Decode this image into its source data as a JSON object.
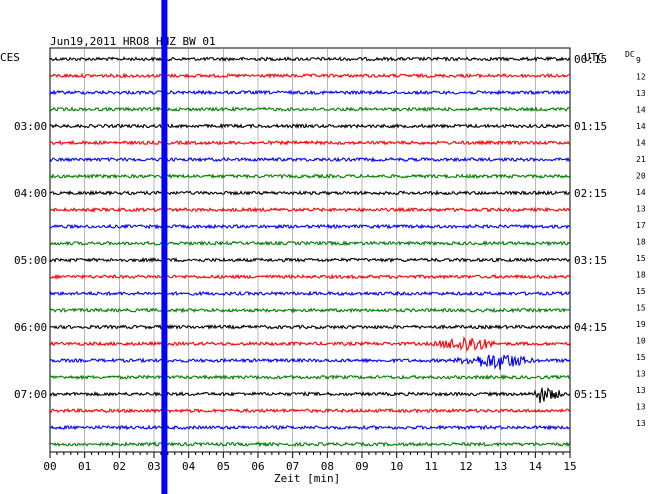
{
  "header": {
    "title": "Jun19,2011   HRO8 HHZ BW 01",
    "left_tz": "CES",
    "right_tz": "UTC",
    "dc_label": "DC"
  },
  "chart_data": {
    "type": "line",
    "xlabel": "Zeit [min]",
    "xlim": [
      0,
      15
    ],
    "x_ticks": [
      "00",
      "01",
      "02",
      "03",
      "04",
      "05",
      "06",
      "07",
      "08",
      "09",
      "10",
      "11",
      "12",
      "13",
      "14",
      "15"
    ],
    "trace_count": 24,
    "trace_colors": [
      "#000000",
      "#ff0000",
      "#0000ff",
      "#008000"
    ],
    "left_hour_labels": [
      {
        "trace": 4,
        "text": "03:00"
      },
      {
        "trace": 8,
        "text": "04:00"
      },
      {
        "trace": 12,
        "text": "05:00"
      },
      {
        "trace": 16,
        "text": "06:00"
      },
      {
        "trace": 20,
        "text": "07:00"
      }
    ],
    "right_hour_labels": [
      {
        "trace": 0,
        "text": "00:15"
      },
      {
        "trace": 4,
        "text": "01:15"
      },
      {
        "trace": 8,
        "text": "02:15"
      },
      {
        "trace": 12,
        "text": "03:15"
      },
      {
        "trace": 16,
        "text": "04:15"
      },
      {
        "trace": 20,
        "text": "05:15"
      }
    ],
    "dc_values": [
      "9",
      "12",
      "13",
      "14",
      "14",
      "14",
      "21",
      "20",
      "14",
      "13",
      "17",
      "18",
      "15",
      "18",
      "15",
      "15",
      "19",
      "10",
      "15",
      "13",
      "13",
      "13",
      "13"
    ],
    "marker": {
      "minute": 3.3,
      "color": "#0000ff"
    },
    "events": [
      {
        "trace": 17,
        "start": 11.0,
        "end": 12.9,
        "peak": 12.1
      },
      {
        "trace": 18,
        "start": 11.6,
        "end": 14.0,
        "peak": 13.0
      },
      {
        "trace": 20,
        "start": 13.9,
        "end": 14.9,
        "peak": 14.1
      }
    ]
  }
}
